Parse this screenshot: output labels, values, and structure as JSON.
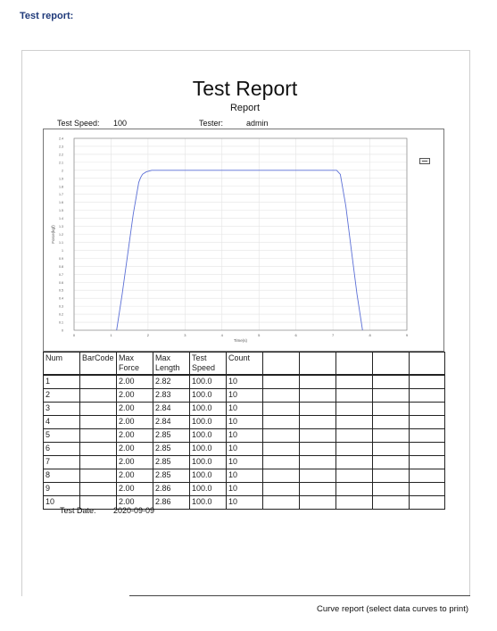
{
  "page": {
    "heading": "Test report:"
  },
  "report": {
    "title": "Test Report",
    "subtitle": "Report",
    "test_speed_label": "Test Speed:",
    "test_speed_value": "100",
    "tester_label": "Tester:",
    "tester_value": "admin",
    "test_date_label": "Test Date:",
    "test_date_value": "2020-09-09"
  },
  "table": {
    "headers": [
      [
        "Num"
      ],
      [
        "BarCode"
      ],
      [
        "Max",
        "Force"
      ],
      [
        "Max",
        "Length"
      ],
      [
        "Test",
        "Speed"
      ],
      [
        "Count"
      ],
      [
        ""
      ],
      [
        ""
      ],
      [
        ""
      ],
      [
        ""
      ],
      [
        ""
      ]
    ],
    "rows": [
      [
        "1",
        "",
        "2.00",
        "2.82",
        "100.0",
        "10"
      ],
      [
        "2",
        "",
        "2.00",
        "2.83",
        "100.0",
        "10"
      ],
      [
        "3",
        "",
        "2.00",
        "2.84",
        "100.0",
        "10"
      ],
      [
        "4",
        "",
        "2.00",
        "2.84",
        "100.0",
        "10"
      ],
      [
        "5",
        "",
        "2.00",
        "2.85",
        "100.0",
        "10"
      ],
      [
        "6",
        "",
        "2.00",
        "2.85",
        "100.0",
        "10"
      ],
      [
        "7",
        "",
        "2.00",
        "2.85",
        "100.0",
        "10"
      ],
      [
        "8",
        "",
        "2.00",
        "2.85",
        "100.0",
        "10"
      ],
      [
        "9",
        "",
        "2.00",
        "2.86",
        "100.0",
        "10"
      ],
      [
        "10",
        "",
        "2.00",
        "2.86",
        "100.0",
        "10"
      ]
    ]
  },
  "footer": {
    "note": "Curve report (select data curves to print)"
  },
  "chart_data": {
    "type": "line",
    "xlabel": "Time(s)",
    "ylabel": "Force(kgf)",
    "xlim": [
      0,
      9
    ],
    "ylim": [
      0,
      2.4
    ],
    "x_ticks": [
      "0",
      "1",
      "2",
      "3",
      "4",
      "5",
      "6",
      "7",
      "8",
      "9"
    ],
    "y_ticks": [
      "0",
      "0.1",
      "0.2",
      "0.3",
      "0.4",
      "0.5",
      "0.6",
      "0.7",
      "0.8",
      "0.9",
      "1",
      "1.1",
      "1.2",
      "1.3",
      "1.4",
      "1.5",
      "1.6",
      "1.7",
      "1.8",
      "1.9",
      "2",
      "2.1",
      "2.2",
      "2.3",
      "2.4"
    ],
    "grid": true,
    "line_color": "#5b6fd6",
    "series": [
      {
        "x": [
          1.15,
          1.3,
          1.45,
          1.6,
          1.75,
          1.8,
          1.85,
          1.95,
          2.1,
          3,
          4,
          5,
          6,
          6.5,
          7,
          7.1,
          7.2,
          7.35,
          7.5,
          7.65,
          7.8
        ],
        "y": [
          0,
          0.45,
          0.95,
          1.45,
          1.85,
          1.91,
          1.95,
          1.98,
          2.0,
          2.0,
          2.0,
          2.0,
          2.0,
          2.0,
          2.0,
          2.0,
          1.95,
          1.55,
          1.0,
          0.45,
          0
        ]
      }
    ]
  }
}
